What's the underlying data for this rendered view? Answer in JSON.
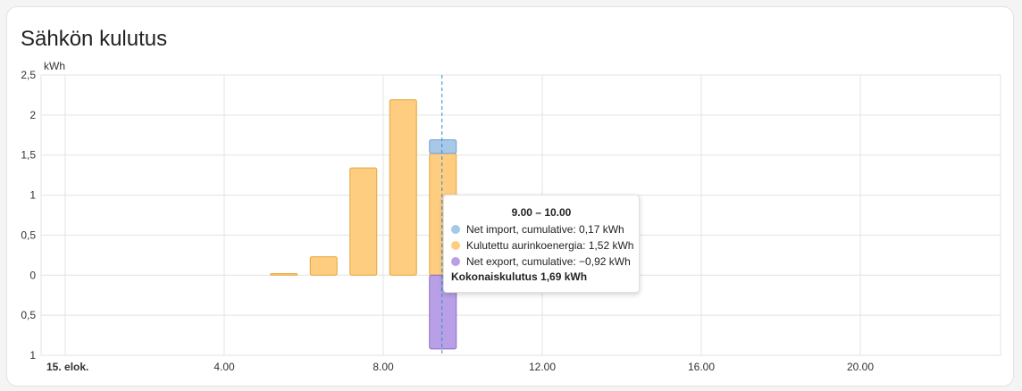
{
  "card": {
    "title": "Sähkön kulutus"
  },
  "colors": {
    "net_import": "#a8c8e8",
    "net_import_border": "#6fa0d0",
    "solar": "#ffcd80",
    "solar_border": "#e6a53a",
    "net_export": "#b9a0e6",
    "net_export_border": "#8a6cc8",
    "cursor": "#2a8dd4",
    "grid": "#e3e3e3"
  },
  "chart_data": {
    "type": "bar",
    "ylabel": "kWh",
    "ylim": [
      -1,
      2.5
    ],
    "y_ticks": [
      {
        "value": 2.5,
        "label": "2,5"
      },
      {
        "value": 2,
        "label": "2"
      },
      {
        "value": 1.5,
        "label": "1,5"
      },
      {
        "value": 1,
        "label": "1"
      },
      {
        "value": 0.5,
        "label": "0,5"
      },
      {
        "value": 0,
        "label": "0"
      },
      {
        "value": -0.5,
        "label": "0,5"
      },
      {
        "value": -1,
        "label": "1"
      }
    ],
    "xlim": [
      0,
      24
    ],
    "x_ticks": [
      {
        "value": 0,
        "label": "15. elok.",
        "bold": true
      },
      {
        "value": 4,
        "label": "4.00"
      },
      {
        "value": 8,
        "label": "8.00"
      },
      {
        "value": 12,
        "label": "12.00"
      },
      {
        "value": 16,
        "label": "16.00"
      },
      {
        "value": 20,
        "label": "20.00"
      }
    ],
    "x_grid": [
      0,
      4,
      8,
      12,
      16,
      20
    ],
    "hours": [
      5,
      6,
      7,
      8,
      9
    ],
    "series": [
      {
        "name": "Kulutettu aurinkoenergia",
        "key": "solar",
        "values": [
          0.02,
          0.23,
          1.34,
          2.19,
          1.52
        ]
      },
      {
        "name": "Net import, cumulative",
        "key": "net_import",
        "values": [
          0,
          0,
          0,
          0,
          0.17
        ]
      },
      {
        "name": "Net export, cumulative",
        "key": "net_export",
        "values": [
          0,
          0,
          0,
          0,
          -0.92
        ]
      }
    ],
    "cursor_x": 9,
    "tooltip": {
      "title": "9.00 – 10.00",
      "rows": [
        {
          "key": "net_import",
          "text": "Net import, cumulative: 0,17 kWh"
        },
        {
          "key": "solar",
          "text": "Kulutettu aurinkoenergia: 1,52 kWh"
        },
        {
          "key": "net_export",
          "text": "Net export, cumulative: −0,92 kWh"
        }
      ],
      "total": "Kokonaiskulutus 1,69 kWh"
    }
  }
}
